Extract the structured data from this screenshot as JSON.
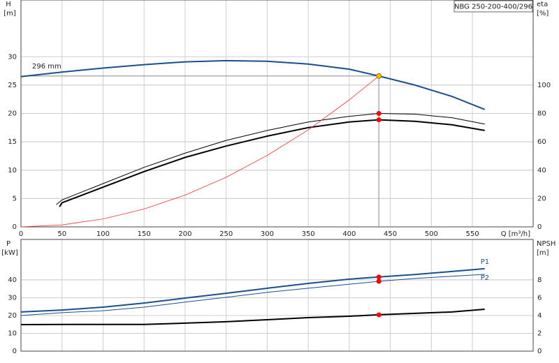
{
  "chart_data": [
    {
      "type": "line",
      "title": "NBG 250-200-400/296",
      "ylabel": "H",
      "yunit": "[m]",
      "y2label": "eta",
      "y2unit": "[%]",
      "xlabel": "Q [m³/h]",
      "xlim": [
        0,
        624
      ],
      "xticks": [
        0,
        50,
        100,
        150,
        200,
        250,
        300,
        350,
        400,
        450,
        500,
        550
      ],
      "ylim": [
        0,
        40
      ],
      "yticks": [
        0,
        5,
        10,
        15,
        20,
        25,
        30
      ],
      "y2lim": [
        0,
        160
      ],
      "y2ticks": [
        0,
        20,
        40,
        60,
        80,
        100
      ],
      "grid": true,
      "series": [
        {
          "color": "#1a4f8f",
          "width": 2,
          "axis": "y",
          "x": [
            0,
            50,
            100,
            150,
            200,
            250,
            300,
            350,
            400,
            436,
            480,
            525,
            565
          ],
          "values": [
            26.5,
            27.3,
            28,
            28.6,
            29.1,
            29.3,
            29.2,
            28.7,
            27.8,
            26.6,
            25,
            23,
            20.7
          ]
        },
        {
          "color": "#000000",
          "width": 1,
          "axis": "y2",
          "x": [
            43,
            50,
            100,
            150,
            200,
            250,
            300,
            350,
            400,
            436,
            480,
            525,
            565
          ],
          "values": [
            15.7,
            19,
            30.5,
            42,
            52,
            61,
            68,
            74,
            78,
            80,
            79.5,
            77,
            72.5
          ]
        },
        {
          "color": "#000000",
          "width": 2,
          "axis": "y2",
          "x": [
            47,
            50,
            100,
            150,
            200,
            250,
            300,
            350,
            400,
            436,
            480,
            525,
            565
          ],
          "values": [
            14.2,
            17,
            28,
            39,
            49,
            57,
            64,
            70,
            74,
            75.5,
            74.5,
            72,
            68
          ]
        },
        {
          "color": "#ff3030",
          "width": 0.8,
          "axis": "y",
          "x": [
            0,
            50,
            100,
            150,
            200,
            250,
            300,
            350,
            400,
            436
          ],
          "values": [
            0,
            0.35,
            1.4,
            3.15,
            5.6,
            8.75,
            12.6,
            17.1,
            22.4,
            26.6
          ]
        }
      ],
      "reference": {
        "x": 436,
        "y": 26.6,
        "label": "296 mm"
      },
      "points": [
        {
          "x": 436,
          "y": 26.6,
          "axis": "y",
          "color": "#f5c000"
        },
        {
          "x": 436,
          "y": 80,
          "axis": "y2",
          "color": "#ff0000"
        },
        {
          "x": 436,
          "y": 75.5,
          "axis": "y2",
          "color": "#ff0000"
        }
      ]
    },
    {
      "type": "line",
      "ylabel": "P",
      "yunit": "[kW]",
      "y2label": "NPSH",
      "y2unit": "[m]",
      "xlim": [
        0,
        624
      ],
      "xticks": [
        0,
        50,
        100,
        150,
        200,
        250,
        300,
        350,
        400,
        450,
        500,
        550
      ],
      "ylim": [
        0,
        62.7
      ],
      "yticks": [
        0,
        10,
        20,
        30,
        40
      ],
      "y2lim": [
        0,
        12.54
      ],
      "y2ticks": [
        0,
        2,
        4,
        6,
        8
      ],
      "grid": true,
      "series": [
        {
          "name": "P1",
          "color": "#1a4f8f",
          "width": 2,
          "axis": "y",
          "x": [
            0,
            50,
            100,
            150,
            200,
            250,
            300,
            350,
            400,
            436,
            480,
            525,
            565
          ],
          "values": [
            22,
            23.1,
            24.7,
            27,
            29.8,
            32.5,
            35.3,
            38,
            40.4,
            41.6,
            43,
            44.7,
            46.3
          ]
        },
        {
          "name": "P2",
          "color": "#1a4f8f",
          "width": 1,
          "axis": "y",
          "x": [
            0,
            50,
            100,
            150,
            200,
            250,
            300,
            350,
            400,
            436,
            480,
            525,
            565
          ],
          "values": [
            20,
            21.6,
            22.7,
            24.7,
            27.5,
            30.2,
            33,
            35.3,
            37.6,
            39.2,
            40.8,
            42,
            43.1
          ]
        },
        {
          "color": "#000000",
          "width": 2,
          "axis": "y2",
          "x": [
            0,
            55,
            100,
            150,
            200,
            250,
            300,
            350,
            400,
            436,
            480,
            525,
            565
          ],
          "values": [
            2.98,
            3,
            3,
            3,
            3.14,
            3.3,
            3.53,
            3.76,
            3.92,
            4.08,
            4.24,
            4.4,
            4.7
          ]
        }
      ],
      "points": [
        {
          "x": 436,
          "y": 41.6,
          "axis": "y",
          "color": "#ff0000"
        },
        {
          "x": 436,
          "y": 39.2,
          "axis": "y",
          "color": "#ff0000"
        },
        {
          "x": 436,
          "y": 4.08,
          "axis": "y2",
          "color": "#ff0000"
        }
      ]
    }
  ]
}
